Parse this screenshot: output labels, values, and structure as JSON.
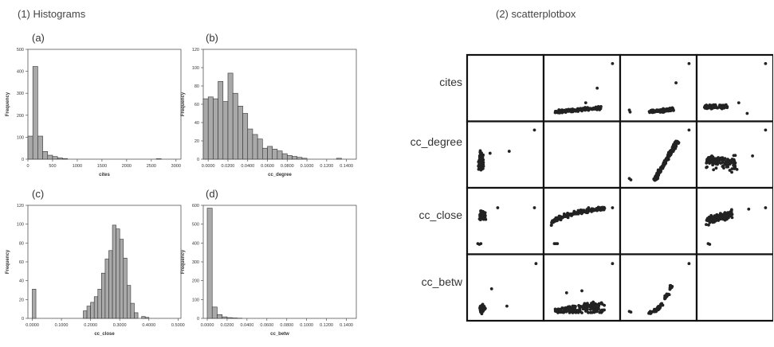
{
  "headings": {
    "histograms": "(1) Histograms",
    "scatter": "(2) scatterplotbox"
  },
  "chart_data": [
    {
      "type": "bar",
      "panel": "(a)",
      "xlabel": "cites",
      "ylabel": "Frequency",
      "xlim": [
        0,
        3100
      ],
      "ylim": [
        0,
        500
      ],
      "xticks": [
        0,
        500,
        1000,
        1500,
        2000,
        2500,
        3000
      ],
      "yticks": [
        0,
        100,
        200,
        300,
        400,
        500
      ],
      "bin_width": 100,
      "bins": [
        {
          "x": 0,
          "y": 105
        },
        {
          "x": 100,
          "y": 422
        },
        {
          "x": 200,
          "y": 105
        },
        {
          "x": 300,
          "y": 35
        },
        {
          "x": 400,
          "y": 18
        },
        {
          "x": 500,
          "y": 12
        },
        {
          "x": 600,
          "y": 6
        },
        {
          "x": 700,
          "y": 3
        },
        {
          "x": 2600,
          "y": 2
        }
      ]
    },
    {
      "type": "bar",
      "panel": "(b)",
      "xlabel": "cc_degree",
      "ylabel": "Frequency",
      "xlim": [
        -0.005,
        0.15
      ],
      "ylim": [
        0,
        120
      ],
      "xticks": [
        "0.0000",
        "0.0200",
        "0.0400",
        "0.0600",
        "0.0800",
        "0.1000",
        "0.1200",
        "0.1400"
      ],
      "yticks": [
        0,
        20,
        40,
        60,
        80,
        100,
        120
      ],
      "bin_width": 0.005,
      "bins": [
        {
          "x": -0.005,
          "y": 66
        },
        {
          "x": 0.0,
          "y": 68
        },
        {
          "x": 0.005,
          "y": 66
        },
        {
          "x": 0.01,
          "y": 85
        },
        {
          "x": 0.015,
          "y": 63
        },
        {
          "x": 0.02,
          "y": 94
        },
        {
          "x": 0.025,
          "y": 72
        },
        {
          "x": 0.03,
          "y": 58
        },
        {
          "x": 0.035,
          "y": 50
        },
        {
          "x": 0.04,
          "y": 33
        },
        {
          "x": 0.045,
          "y": 27
        },
        {
          "x": 0.05,
          "y": 22
        },
        {
          "x": 0.055,
          "y": 12
        },
        {
          "x": 0.06,
          "y": 14
        },
        {
          "x": 0.065,
          "y": 11
        },
        {
          "x": 0.07,
          "y": 9
        },
        {
          "x": 0.075,
          "y": 6
        },
        {
          "x": 0.08,
          "y": 4
        },
        {
          "x": 0.085,
          "y": 3
        },
        {
          "x": 0.09,
          "y": 2
        },
        {
          "x": 0.095,
          "y": 1
        },
        {
          "x": 0.13,
          "y": 1
        }
      ]
    },
    {
      "type": "bar",
      "panel": "(c)",
      "xlabel": "cc_close",
      "ylabel": "Frequency",
      "xlim": [
        -0.015,
        0.51
      ],
      "ylim": [
        0,
        120
      ],
      "xticks": [
        "0.0000",
        "0.1000",
        "0.2000",
        "0.3000",
        "0.4000",
        "0.5000"
      ],
      "yticks": [
        0,
        20,
        40,
        60,
        80,
        100,
        120
      ],
      "bin_width": 0.0125,
      "bins": [
        {
          "x": 0.0,
          "y": 31
        },
        {
          "x": 0.175,
          "y": 8
        },
        {
          "x": 0.1875,
          "y": 13
        },
        {
          "x": 0.2,
          "y": 17
        },
        {
          "x": 0.2125,
          "y": 23
        },
        {
          "x": 0.225,
          "y": 31
        },
        {
          "x": 0.2375,
          "y": 48
        },
        {
          "x": 0.25,
          "y": 63
        },
        {
          "x": 0.2625,
          "y": 72
        },
        {
          "x": 0.275,
          "y": 99
        },
        {
          "x": 0.2875,
          "y": 95
        },
        {
          "x": 0.3,
          "y": 84
        },
        {
          "x": 0.3125,
          "y": 64
        },
        {
          "x": 0.325,
          "y": 35
        },
        {
          "x": 0.3375,
          "y": 16
        },
        {
          "x": 0.35,
          "y": 6
        },
        {
          "x": 0.375,
          "y": 2
        },
        {
          "x": 0.3875,
          "y": 1
        }
      ]
    },
    {
      "type": "bar",
      "panel": "(d)",
      "xlabel": "cc_betw",
      "ylabel": "Frequency",
      "xlim": [
        -0.004,
        0.15
      ],
      "ylim": [
        0,
        600
      ],
      "xticks": [
        "0.0000",
        "0.0200",
        "0.0400",
        "0.0600",
        "0.0800",
        "0.1000",
        "0.1200",
        "0.1400"
      ],
      "yticks": [
        0,
        100,
        200,
        300,
        400,
        500,
        600
      ],
      "bin_width": 0.005,
      "bins": [
        {
          "x": 0.0,
          "y": 585
        },
        {
          "x": 0.005,
          "y": 60
        },
        {
          "x": 0.01,
          "y": 20
        },
        {
          "x": 0.015,
          "y": 8
        },
        {
          "x": 0.02,
          "y": 4
        },
        {
          "x": 0.025,
          "y": 2
        },
        {
          "x": 0.03,
          "y": 1
        }
      ]
    },
    {
      "type": "scatter",
      "variables": [
        "cites",
        "cc_degree",
        "cc_close",
        "cc_betw"
      ]
    }
  ]
}
